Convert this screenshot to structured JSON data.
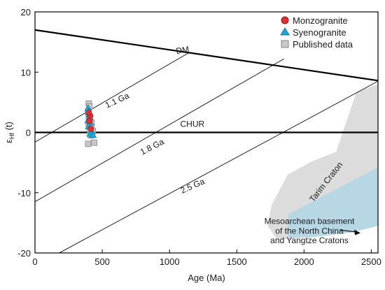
{
  "chart_data": {
    "type": "scatter",
    "xlabel": "Age (Ma)",
    "ylabel": "εHf (t)",
    "ylabel_main": "ε",
    "ylabel_sub": "Hf",
    "ylabel_suffix": " (t)",
    "xlim": [
      0,
      2550
    ],
    "ylim": [
      -20,
      20
    ],
    "x_ticks": [
      0,
      500,
      1000,
      1500,
      2000,
      2500
    ],
    "y_ticks": [
      -20,
      -10,
      0,
      10,
      20
    ],
    "legend": {
      "placement": "top-right"
    },
    "series": [
      {
        "name": "Monzogranite",
        "marker": "circle",
        "color": "#e03030",
        "points": [
          [
            410,
            2.8
          ],
          [
            405,
            1.9
          ],
          [
            415,
            0.6
          ],
          [
            400,
            3.3
          ]
        ]
      },
      {
        "name": "Syenogranite",
        "marker": "triangle",
        "color": "#1fa6d8",
        "points": [
          [
            395,
            4.0
          ],
          [
            400,
            3.4
          ],
          [
            405,
            2.5
          ],
          [
            410,
            1.7
          ],
          [
            400,
            1.0
          ],
          [
            420,
            0.3
          ],
          [
            410,
            -0.2
          ],
          [
            395,
            2.0
          ],
          [
            430,
            -0.4
          ],
          [
            405,
            3.0
          ]
        ]
      },
      {
        "name": "Published data",
        "marker": "square",
        "color": "#c8c8c8",
        "points": [
          [
            400,
            4.8
          ],
          [
            405,
            4.3
          ],
          [
            395,
            3.5
          ],
          [
            410,
            2.2
          ],
          [
            400,
            1.3
          ],
          [
            420,
            0.9
          ],
          [
            430,
            0.2
          ],
          [
            415,
            -0.5
          ],
          [
            395,
            -1.9
          ],
          [
            440,
            -1.7
          ],
          [
            420,
            1.6
          ],
          [
            400,
            2.7
          ],
          [
            410,
            0.4
          ]
        ]
      }
    ],
    "reference_lines": [
      {
        "label": "DM",
        "x": [
          0,
          2550
        ],
        "y": [
          17,
          8.6
        ]
      },
      {
        "label": "CHUR",
        "x": [
          0,
          2550
        ],
        "y": [
          0,
          0
        ]
      }
    ],
    "evolution_lines": [
      {
        "label": "1.1 Ga",
        "x": [
          0,
          1150
        ],
        "y": [
          -1.6,
          13.3
        ]
      },
      {
        "label": "1.8 Ga",
        "x": [
          0,
          1850
        ],
        "y": [
          -11.5,
          12.2
        ]
      },
      {
        "label": "2.5 Ga",
        "x": [
          180,
          2550
        ],
        "y": [
          -20,
          8.5
        ]
      }
    ],
    "fields": [
      {
        "label": "Tarim Craton",
        "color": "#dcdcdc",
        "polygon": [
          [
            1880,
            -7
          ],
          [
            1760,
            -12
          ],
          [
            1730,
            -15.5
          ],
          [
            1800,
            -17.8
          ],
          [
            2050,
            -17.4
          ],
          [
            2550,
            -15.5
          ],
          [
            2550,
            8
          ],
          [
            2390,
            6.7
          ],
          [
            2310,
            1.5
          ],
          [
            2240,
            -3.2
          ],
          [
            2050,
            -4.9
          ]
        ]
      },
      {
        "label": "Mesoarchean basement of the North China and Yangtze Cratons",
        "color": "#b7d7e5",
        "polygon": [
          [
            1880,
            -13.6
          ],
          [
            2550,
            -5.8
          ],
          [
            2550,
            -15.5
          ],
          [
            2350,
            -16.6
          ],
          [
            2050,
            -17.4
          ],
          [
            1880,
            -17.4
          ]
        ]
      }
    ],
    "annotations": [
      {
        "text": "DM",
        "x": 1100,
        "y": 13.2
      },
      {
        "text": "CHUR",
        "x": 1170,
        "y": 0.9
      },
      {
        "text": "1.1 Ga",
        "x": 620,
        "y": 4.9
      },
      {
        "text": "1.8 Ga",
        "x": 880,
        "y": -2.8
      },
      {
        "text": "2.5 Ga",
        "x": 1180,
        "y": -9.3
      },
      {
        "text": "Tarim Craton",
        "x": 2180,
        "y": -8.5
      },
      {
        "text": "Mesoarchean basement",
        "x": 1950,
        "y": -15.2
      },
      {
        "text": "of the North China",
        "x": 1950,
        "y": -16.8
      },
      {
        "text": "and Yangtze Cratons",
        "x": 1950,
        "y": -18.4
      }
    ]
  }
}
